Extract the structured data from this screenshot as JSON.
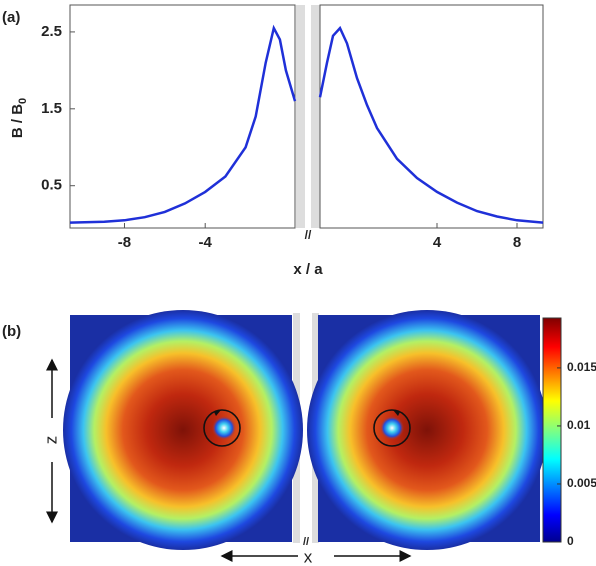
{
  "panel_labels": [
    "(a)",
    "(b)"
  ],
  "chart_data": [
    {
      "type": "line",
      "ylabel": [
        "B / B",
        "0"
      ],
      "xlabel": "x / a",
      "break_mark": "//",
      "color": "#1f30d8",
      "ylim": [
        -0.05,
        2.85
      ],
      "yticks": [
        0.5,
        1.5,
        2.5
      ],
      "panels": [
        {
          "xlim": [
            -10.7,
            0.45
          ],
          "xticks": [
            -8,
            -4
          ],
          "x": [
            -10.7,
            -9,
            -8,
            -7,
            -6,
            -5,
            -4,
            -3,
            -2,
            -1.5,
            -1,
            -0.6,
            -0.3,
            0,
            0.45
          ],
          "values": [
            0.02,
            0.03,
            0.05,
            0.09,
            0.16,
            0.27,
            0.42,
            0.62,
            1.0,
            1.4,
            2.1,
            2.55,
            2.4,
            2.0,
            1.6
          ]
        },
        {
          "xlim": [
            -1.85,
            9.3
          ],
          "xticks": [
            4,
            8
          ],
          "x": [
            -1.85,
            -1.5,
            -1.2,
            -0.85,
            -0.5,
            0,
            0.5,
            1,
            2,
            3,
            4,
            5,
            6,
            7,
            8,
            9.3
          ],
          "values": [
            1.65,
            2.1,
            2.45,
            2.55,
            2.35,
            1.9,
            1.55,
            1.25,
            0.85,
            0.6,
            0.42,
            0.28,
            0.17,
            0.1,
            0.05,
            0.02
          ]
        }
      ]
    },
    {
      "type": "heatmap",
      "xlabel": "x",
      "ylabel": "z",
      "break_mark": "//",
      "clim": [
        0,
        0.0193
      ],
      "cticks": [
        0,
        0.005,
        0.01,
        0.015
      ]
    }
  ]
}
